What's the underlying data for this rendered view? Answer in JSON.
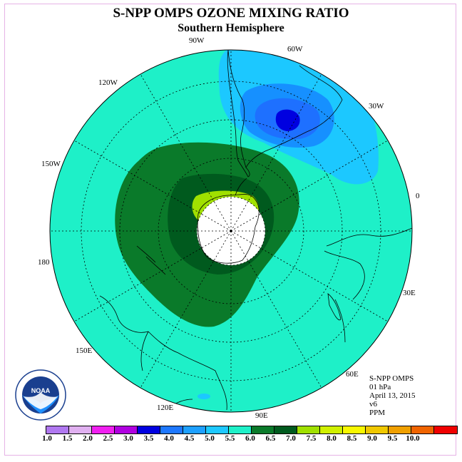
{
  "header": {
    "title": "S-NPP OMPS OZONE MIXING RATIO",
    "subtitle": "Southern Hemisphere"
  },
  "map": {
    "projection": "south-polar-stereographic",
    "longitude_labels": [
      "90W",
      "60W",
      "30W",
      "0",
      "30E",
      "60E",
      "90E",
      "120E",
      "150E",
      "180",
      "150W",
      "120W"
    ],
    "field": "ozone mixing ratio",
    "colors": {
      "background_field": "#1ef0c8",
      "dark_green": "#0a7a2a",
      "darker_green": "#005a1e",
      "yellow_green": "#a0e000",
      "light_blue": "#1cc8ff",
      "medium_blue": "#1690ff",
      "deep_blue": "#0000e0",
      "polar_gap": "#ffffff"
    }
  },
  "info": {
    "instrument": "S-NPP OMPS",
    "level": "01 hPa",
    "date": "April 13, 2015",
    "version": "v6",
    "units": "PPM"
  },
  "colorbar": {
    "ticks": [
      "1.0",
      "1.5",
      "2.0",
      "2.5",
      "3.0",
      "3.5",
      "4.0",
      "4.5",
      "5.0",
      "5.5",
      "6.0",
      "6.5",
      "7.0",
      "7.5",
      "8.0",
      "8.5",
      "9.0",
      "9.5",
      "10.0"
    ],
    "colors": [
      "#b078f0",
      "#e0b0f0",
      "#f020f0",
      "#b000e0",
      "#0000e0",
      "#1e78ff",
      "#1ea0ff",
      "#1ec8ff",
      "#1ef0c8",
      "#0a7a2a",
      "#005a1e",
      "#a0e000",
      "#d0f000",
      "#f8f800",
      "#f0c800",
      "#f0a000",
      "#f06400",
      "#f00000",
      "#7a4a2a"
    ]
  },
  "logo": {
    "text": "NOAA",
    "ring_text": "NATIONAL OCEANIC AND ATMOSPHERIC ADMINISTRATION · U.S. DEPARTMENT OF COMMERCE"
  }
}
